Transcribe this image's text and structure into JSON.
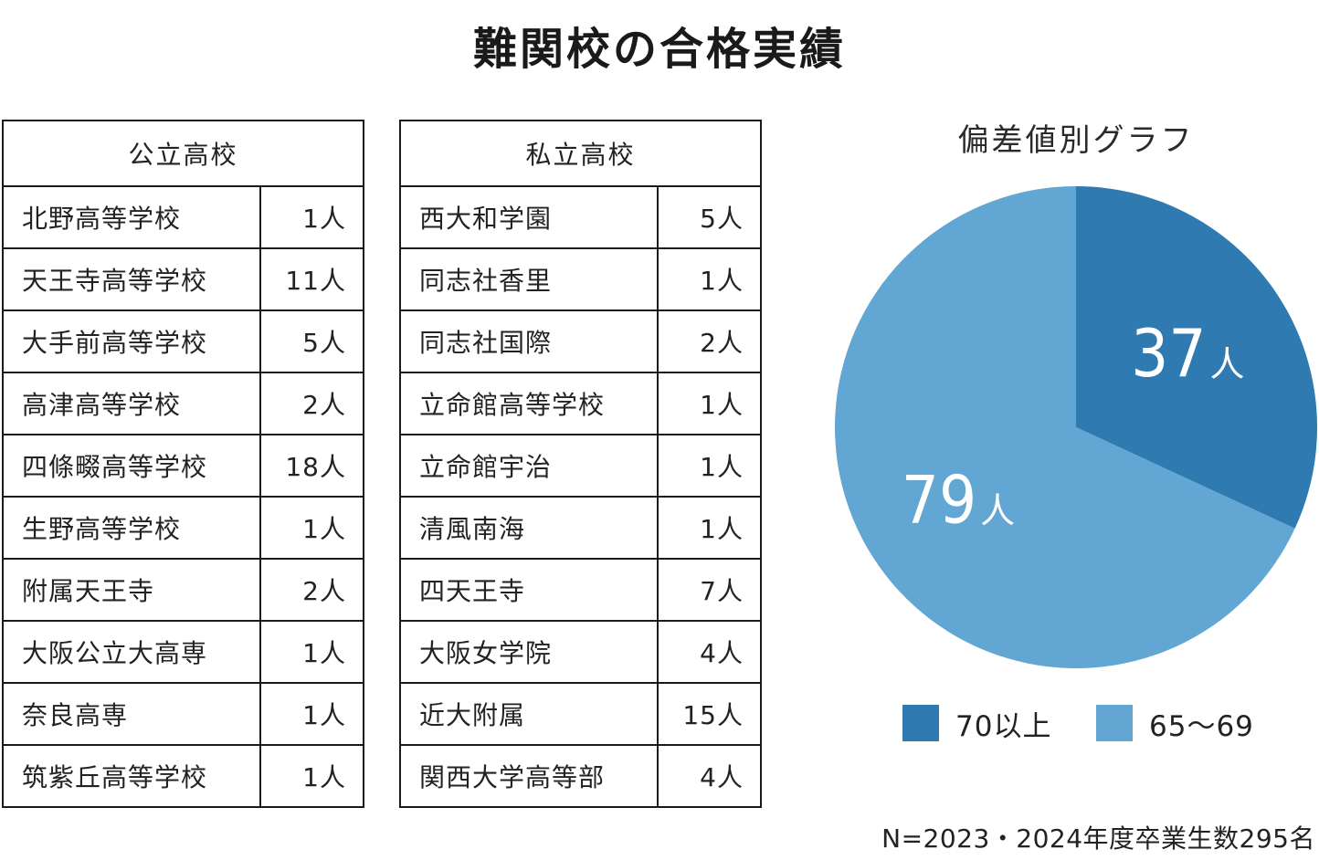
{
  "title": "難関校の合格実績",
  "public_table": {
    "header": "公立高校",
    "rows": [
      {
        "name": "北野高等学校",
        "count": "1人"
      },
      {
        "name": "天王寺高等学校",
        "count": "11人"
      },
      {
        "name": "大手前高等学校",
        "count": "5人"
      },
      {
        "name": "高津高等学校",
        "count": "2人"
      },
      {
        "name": "四條畷高等学校",
        "count": "18人"
      },
      {
        "name": "生野高等学校",
        "count": "1人"
      },
      {
        "name": "附属天王寺",
        "count": "2人"
      },
      {
        "name": "大阪公立大高専",
        "count": "1人"
      },
      {
        "name": "奈良高専",
        "count": "1人"
      },
      {
        "name": "筑紫丘高等学校",
        "count": "1人"
      }
    ]
  },
  "private_table": {
    "header": "私立高校",
    "rows": [
      {
        "name": "西大和学園",
        "count": "5人"
      },
      {
        "name": "同志社香里",
        "count": "1人"
      },
      {
        "name": "同志社国際",
        "count": "2人"
      },
      {
        "name": "立命館高等学校",
        "count": "1人"
      },
      {
        "name": "立命館宇治",
        "count": "1人"
      },
      {
        "name": "清風南海",
        "count": "1人"
      },
      {
        "name": "四天王寺",
        "count": "7人"
      },
      {
        "name": "大阪女学院",
        "count": "4人"
      },
      {
        "name": "近大附属",
        "count": "15人"
      },
      {
        "name": "関西大学高等部",
        "count": "4人"
      }
    ]
  },
  "chart_data": {
    "type": "pie",
    "title": "偏差値別グラフ",
    "unit": "人",
    "slices": [
      {
        "label": "70以上",
        "value": 37,
        "color": "#2f7ab1"
      },
      {
        "label": "65〜69",
        "value": 79,
        "color": "#62a6d3"
      }
    ],
    "start": "12 o'clock",
    "direction": "clockwise",
    "legend_position": "bottom"
  },
  "footnote": "N=2023・2024年度卒業生数295名"
}
